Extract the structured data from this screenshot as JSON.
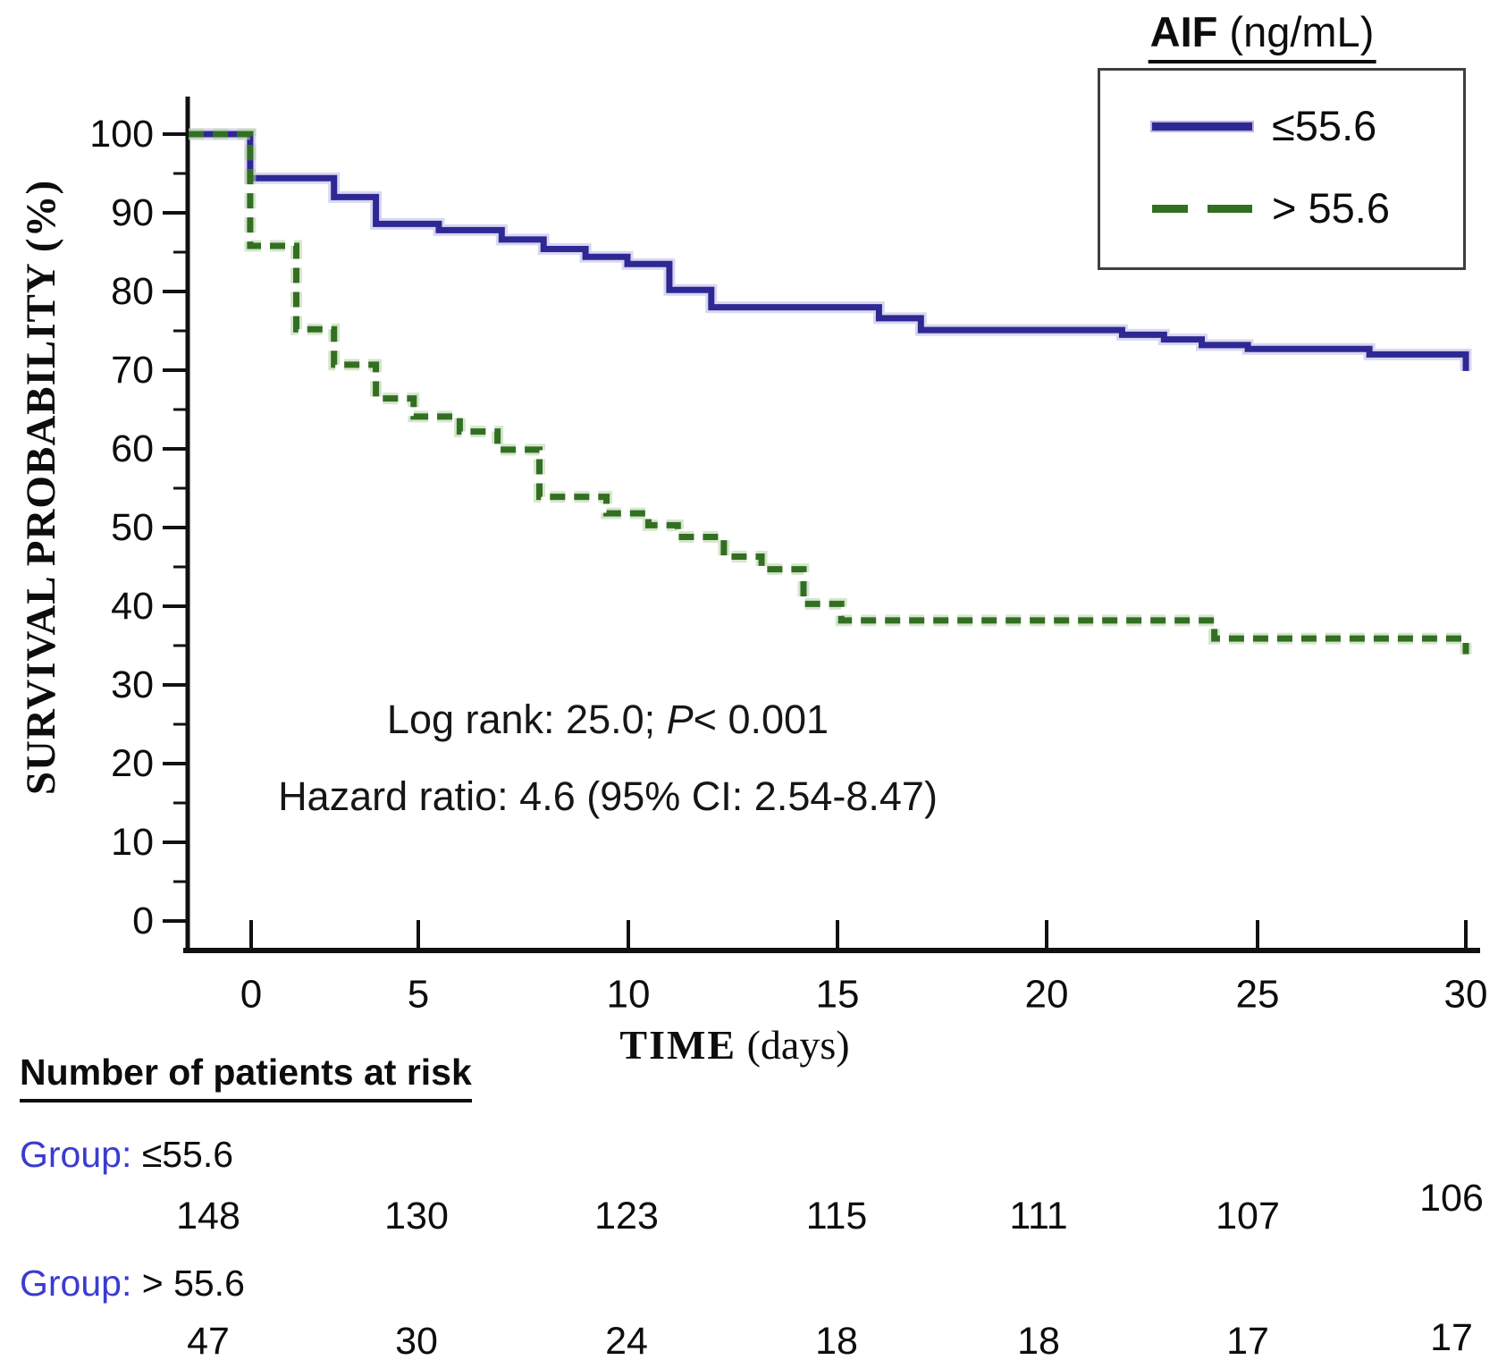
{
  "accent_colors": {
    "curve_low_blue": "#2e2894",
    "curve_low_blue_halo": "#b9b6e3",
    "curve_high_green": "#336f22",
    "curve_high_green_halo": "#b5d2a6",
    "group_label_blue": "#3b3bd1",
    "axis_black": "#111111"
  },
  "chart_data": {
    "type": "line",
    "subtype": "kaplan-meier-step",
    "title": "",
    "xlabel": "TIME (days)",
    "ylabel": "SURVIVAL PROBABILITY (%)",
    "xlim": [
      0,
      30
    ],
    "ylim": [
      0,
      100
    ],
    "x_ticks": [
      "0",
      "5",
      "10",
      "15",
      "20",
      "25",
      "30"
    ],
    "y_ticks": [
      "100",
      "90",
      "80",
      "70",
      "60",
      "50",
      "40",
      "30",
      "20",
      "10",
      "0"
    ],
    "grid": false,
    "legend_position": "top-right",
    "series": [
      {
        "name": "AIF ≤55.6",
        "color": "#2e2894",
        "line_style": "solid",
        "step_points": [
          [
            0,
            100
          ],
          [
            1,
            94.4
          ],
          [
            3,
            92.0
          ],
          [
            4,
            88.6
          ],
          [
            5.5,
            87.8
          ],
          [
            7,
            86.6
          ],
          [
            8,
            85.4
          ],
          [
            9,
            84.4
          ],
          [
            10,
            83.5
          ],
          [
            11,
            80.2
          ],
          [
            12,
            78.0
          ],
          [
            16,
            76.6
          ],
          [
            17,
            75.1
          ],
          [
            21.8,
            74.5
          ],
          [
            22.8,
            73.9
          ],
          [
            23.7,
            73.2
          ],
          [
            24.8,
            72.7
          ],
          [
            27.7,
            72.0
          ],
          [
            30,
            69.9
          ]
        ]
      },
      {
        "name": "AIF > 55.6",
        "color": "#336f22",
        "line_style": "dashed",
        "step_points": [
          [
            0,
            100
          ],
          [
            1,
            85.8
          ],
          [
            2.1,
            75.2
          ],
          [
            3,
            70.7
          ],
          [
            4,
            66.4
          ],
          [
            4.9,
            64.1
          ],
          [
            6,
            62.2
          ],
          [
            6.9,
            59.9
          ],
          [
            7.9,
            53.9
          ],
          [
            9.5,
            51.8
          ],
          [
            10.5,
            50.3
          ],
          [
            11.2,
            48.8
          ],
          [
            12.3,
            46.3
          ],
          [
            13.2,
            44.7
          ],
          [
            14.2,
            40.3
          ],
          [
            15.1,
            38.2
          ],
          [
            24,
            35.9
          ],
          [
            30,
            33.9
          ]
        ]
      }
    ],
    "annotations": [
      "Log rank: 25.0; P< 0.001",
      "Hazard ratio: 4.6 (95% CI: 2.54-8.47)"
    ]
  },
  "axis": {
    "y_title": "SURVIVAL PROBABILITY (%)",
    "x_title_bold": "TIME",
    "x_title_rest": " (days)"
  },
  "legend": {
    "title_bold": "AIF",
    "title_rest": " (ng/mL)",
    "entries": [
      {
        "label": "≤55.6",
        "style": "solid"
      },
      {
        "label": "> 55.6",
        "style": "dashed"
      }
    ]
  },
  "annotation": {
    "line1_pre": "Log rank: 25.0; ",
    "line1_italic": "P",
    "line1_post": "< 0.001",
    "line2": "Hazard ratio: 4.6 (95% CI: 2.54-8.47)"
  },
  "at_risk": {
    "heading": "Number of patients at risk",
    "groups": [
      {
        "label_prefix": "Group:",
        "label_value": " ≤55.6",
        "counts": [
          "148",
          "130",
          "123",
          "115",
          "111",
          "107",
          "106"
        ]
      },
      {
        "label_prefix": "Group:",
        "label_value": " > 55.6",
        "counts": [
          "47",
          "30",
          "24",
          "18",
          "18",
          "17",
          "17"
        ]
      }
    ]
  }
}
